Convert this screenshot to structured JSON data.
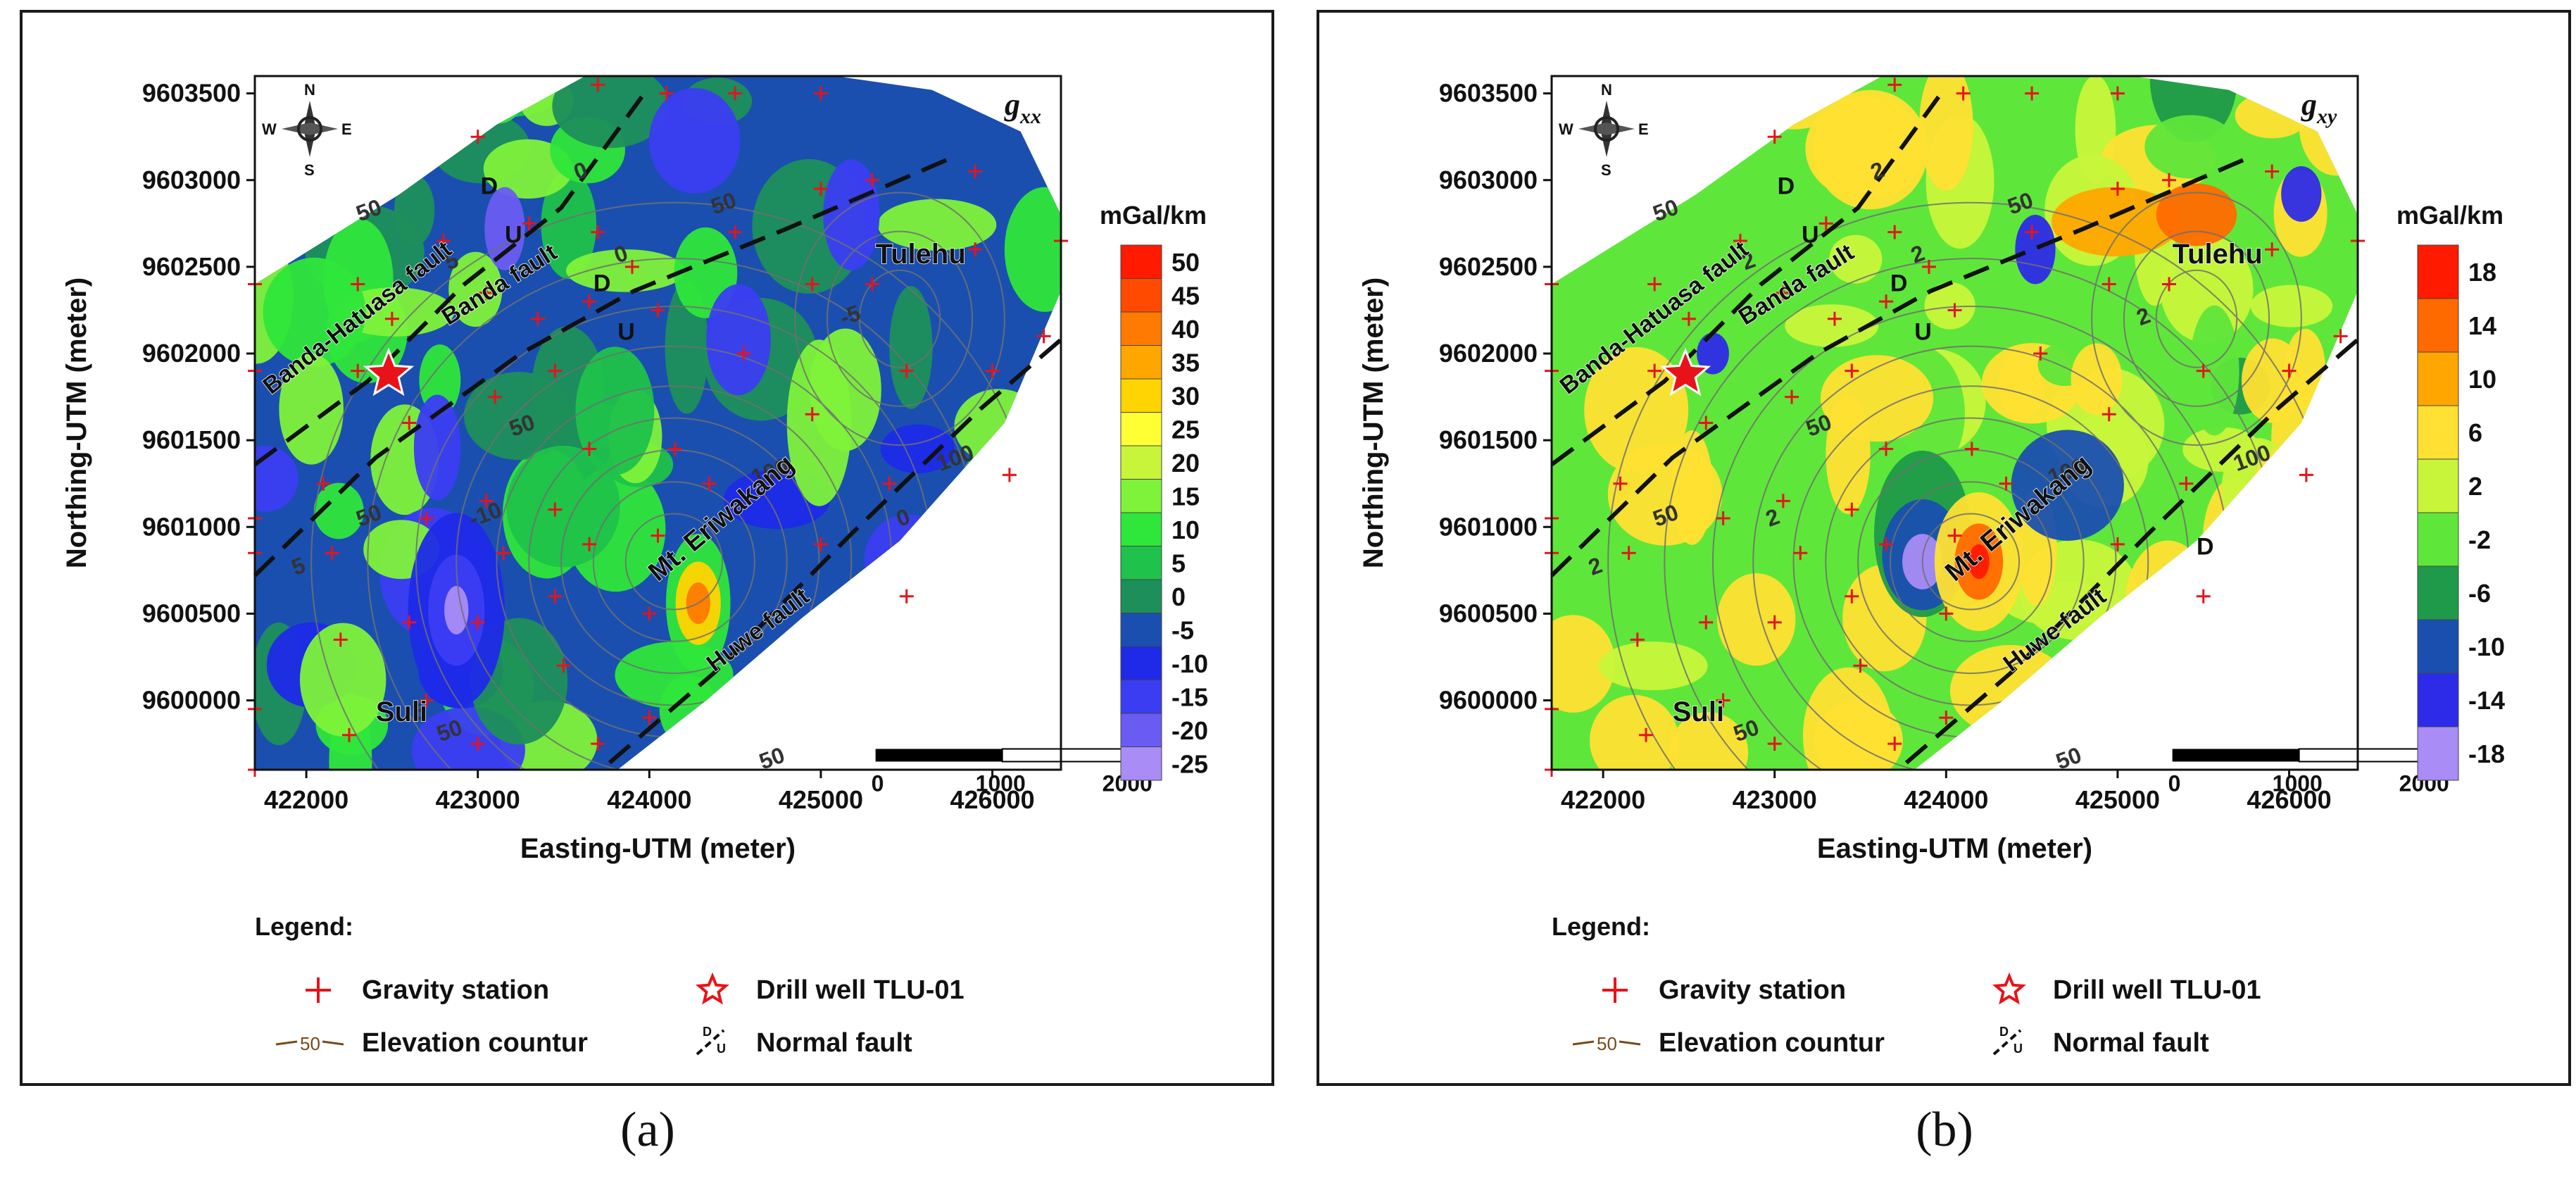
{
  "panels": [
    {
      "id": "a",
      "component": "g",
      "component_sub": "xx",
      "caption": "(a)",
      "unit": "mGal/km",
      "colorbar": {
        "labels": [
          "50",
          "45",
          "40",
          "35",
          "30",
          "25",
          "20",
          "15",
          "10",
          "5",
          "0",
          "-5",
          "-10",
          "-15",
          "-20",
          "-25"
        ],
        "colors": [
          "#ff1a00",
          "#ff4a00",
          "#ff7a00",
          "#ffa600",
          "#ffd400",
          "#ffff33",
          "#c8f53a",
          "#7ff23a",
          "#2fe63a",
          "#1fc24a",
          "#1d8f5a",
          "#1a4fb0",
          "#1e2ae8",
          "#3b3df2",
          "#6a5cf2",
          "#a98cf5"
        ]
      },
      "fault_labels": [
        "Banda-Hatuasa fault",
        "Banda fault",
        "Huwe fault"
      ],
      "place_labels": [
        "Tulehu",
        "Mt. Eriwakang",
        "Suli"
      ],
      "fault_throw_labels": [
        "D",
        "U",
        "D",
        "U"
      ],
      "contour_labels": [
        "50",
        "50",
        "50",
        "100",
        "100",
        "50",
        "50",
        "50",
        "0",
        "0",
        "5",
        "5",
        "-10",
        "-5",
        "5",
        "0"
      ]
    },
    {
      "id": "b",
      "component": "g",
      "component_sub": "xy",
      "caption": "(b)",
      "unit": "mGal/km",
      "colorbar": {
        "labels": [
          "18",
          "14",
          "10",
          "6",
          "2",
          "-2",
          "-6",
          "-10",
          "-14",
          "-18"
        ],
        "colors": [
          "#ff1a00",
          "#ff6a00",
          "#ffa600",
          "#ffe033",
          "#c8f53a",
          "#5fe63a",
          "#1f9a4a",
          "#1a4fb0",
          "#2d2ae8",
          "#a98cf5"
        ]
      },
      "fault_labels": [
        "Banda-Hatuasa fault",
        "Banda fault",
        "Huwe fault"
      ],
      "place_labels": [
        "Tulehu",
        "Mt. Eriwakang",
        "Suli"
      ],
      "fault_throw_labels": [
        "D",
        "U",
        "D",
        "U",
        "D"
      ],
      "contour_labels": [
        "50",
        "50",
        "50",
        "100",
        "100",
        "50",
        "50",
        "50",
        "2",
        "2",
        "2",
        "2",
        "2",
        "2"
      ]
    }
  ],
  "axes": {
    "xlabel": "Easting-UTM (meter)",
    "ylabel": "Northing-UTM (meter)",
    "x_ticks": [
      "422000",
      "423000",
      "424000",
      "425000",
      "426000"
    ],
    "y_ticks": [
      "9603500",
      "9603000",
      "9602500",
      "9602000",
      "9601500",
      "9601000",
      "9600500",
      "9600000"
    ],
    "x_range": [
      421700,
      426400
    ],
    "y_range": [
      9599600,
      9603600
    ]
  },
  "scale_bar": {
    "labels": [
      "0",
      "1000",
      "2000"
    ],
    "unit": "m"
  },
  "compass": {
    "n": "N",
    "s": "S",
    "e": "E",
    "w": "W"
  },
  "legend": {
    "title": "Legend:",
    "items": [
      {
        "symbol": "plus",
        "label": "Gravity station"
      },
      {
        "symbol": "star",
        "label": "Drill well TLU-01"
      },
      {
        "symbol": "contour",
        "sample": "50",
        "label": "Elevation countur"
      },
      {
        "symbol": "fault",
        "sample_d": "D",
        "sample_u": "U",
        "label": "Normal fault"
      }
    ]
  },
  "colors": {
    "station": "#e8131a",
    "fault": "#111111",
    "contour": "#707070",
    "tulehu_label": "#0a0a0a"
  },
  "stations": [
    [
      421700,
      9602400
    ],
    [
      421700,
      9601900
    ],
    [
      421700,
      9601050
    ],
    [
      421700,
      9600850
    ],
    [
      421700,
      9599950
    ],
    [
      421700,
      9599600
    ],
    [
      422100,
      9601250
    ],
    [
      422150,
      9600850
    ],
    [
      422200,
      9600350
    ],
    [
      422250,
      9599800
    ],
    [
      422300,
      9602400
    ],
    [
      422300,
      9601900
    ],
    [
      422500,
      9602200
    ],
    [
      422600,
      9601600
    ],
    [
      422700,
      9601050
    ],
    [
      422600,
      9600450
    ],
    [
      422700,
      9600000
    ],
    [
      422800,
      9602650
    ],
    [
      423000,
      9603250
    ],
    [
      423050,
      9602350
    ],
    [
      423100,
      9601750
    ],
    [
      423050,
      9601150
    ],
    [
      423150,
      9600850
    ],
    [
      423000,
      9600450
    ],
    [
      423000,
      9599750
    ],
    [
      423300,
      9602750
    ],
    [
      423350,
      9602200
    ],
    [
      423450,
      9601900
    ],
    [
      423450,
      9601100
    ],
    [
      423450,
      9600600
    ],
    [
      423500,
      9600200
    ],
    [
      423700,
      9603550
    ],
    [
      423700,
      9602700
    ],
    [
      423650,
      9602300
    ],
    [
      423650,
      9601450
    ],
    [
      423650,
      9600900
    ],
    [
      423700,
      9599750
    ],
    [
      423900,
      9602500
    ],
    [
      424100,
      9603500
    ],
    [
      424050,
      9602250
    ],
    [
      424150,
      9601450
    ],
    [
      424050,
      9600950
    ],
    [
      424000,
      9600500
    ],
    [
      424000,
      9599900
    ],
    [
      424500,
      9603500
    ],
    [
      424500,
      9602700
    ],
    [
      424550,
      9602000
    ],
    [
      424350,
      9601250
    ],
    [
      425000,
      9603500
    ],
    [
      425000,
      9602950
    ],
    [
      424950,
      9602400
    ],
    [
      424950,
      9601650
    ],
    [
      425000,
      9600900
    ],
    [
      425300,
      9603000
    ],
    [
      425300,
      9602400
    ],
    [
      425500,
      9601900
    ],
    [
      425400,
      9601250
    ],
    [
      425500,
      9600600
    ],
    [
      425900,
      9603050
    ],
    [
      425900,
      9602600
    ],
    [
      426000,
      9601900
    ],
    [
      426100,
      9601300
    ],
    [
      426400,
      9602650
    ],
    [
      426300,
      9602100
    ]
  ],
  "well": [
    422480,
    9601880
  ]
}
